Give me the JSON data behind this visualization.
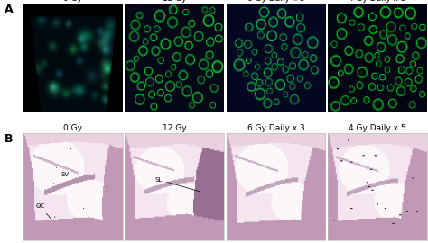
{
  "row_labels": [
    "A",
    "B"
  ],
  "col_labels": [
    "0 Gy",
    "12 Gy",
    "6 Gy Daily x 3",
    "4 Gy Daily x 5"
  ],
  "label_fontsize": 6.5,
  "panel_label_fontsize": 9,
  "background_color": "#ffffff",
  "figure_width": 4.74,
  "figure_height": 2.7
}
